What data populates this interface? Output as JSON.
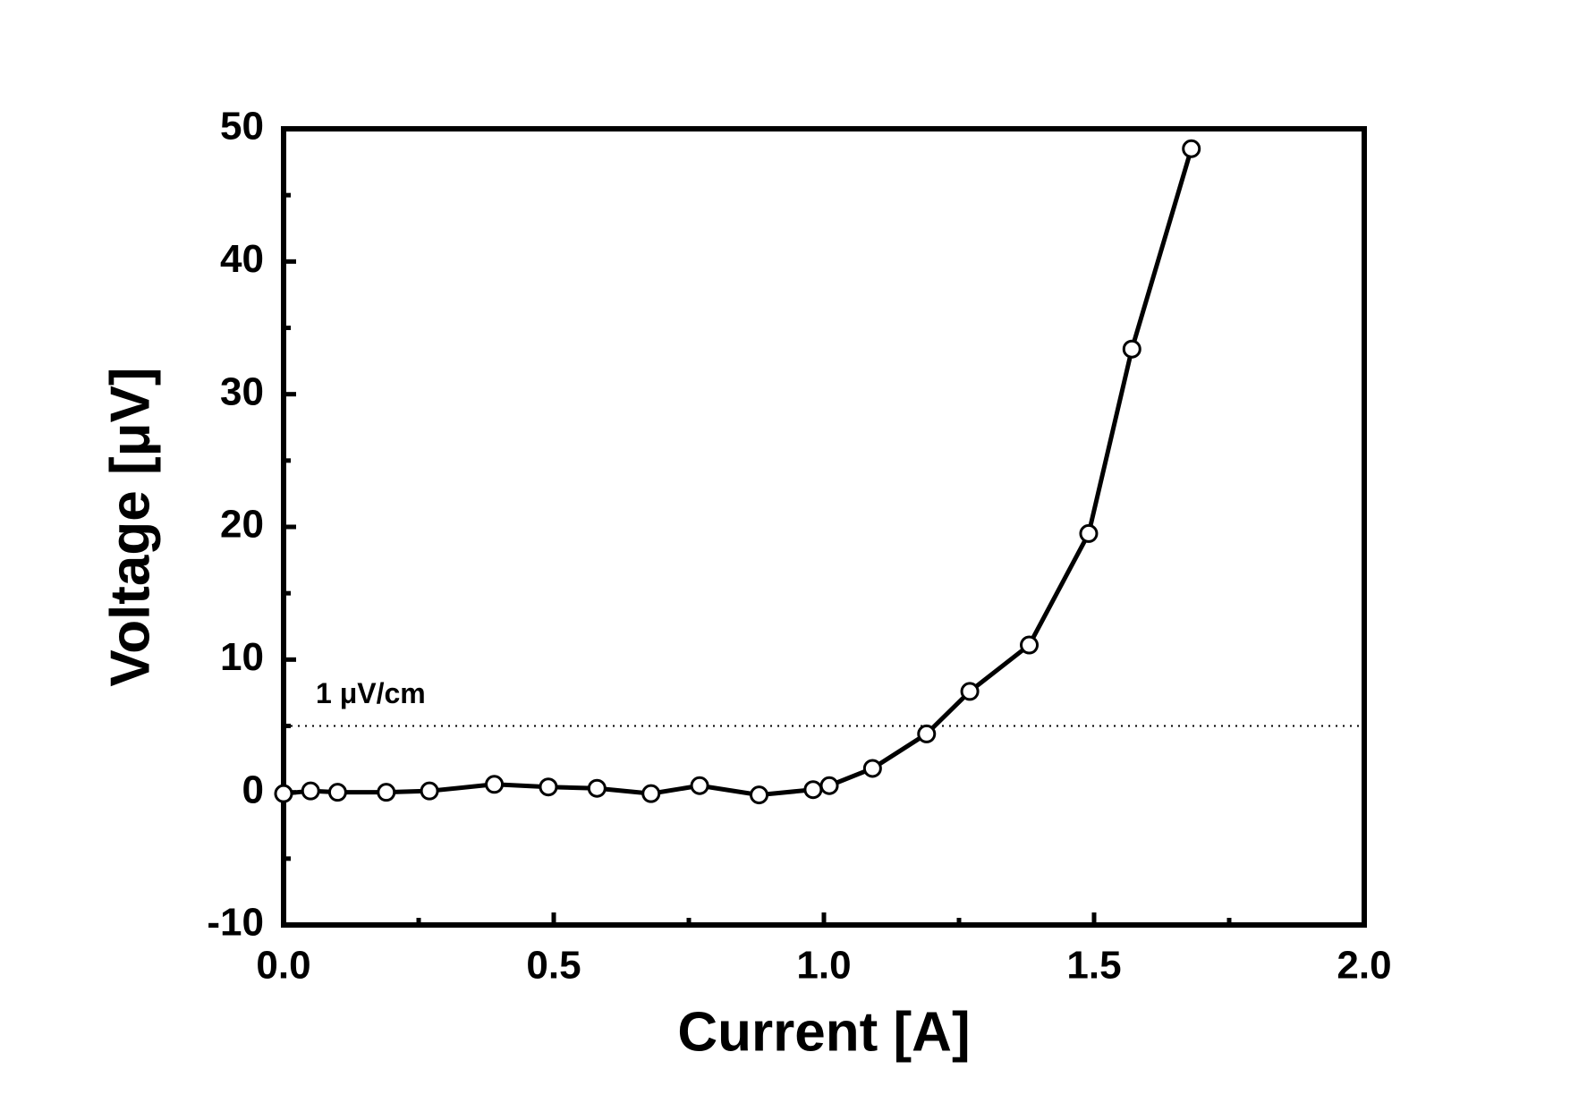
{
  "chart_data": {
    "type": "line",
    "x_label": "Current [A]",
    "y_label": "Voltage [μV]",
    "x": [
      0.0,
      0.05,
      0.1,
      0.19,
      0.27,
      0.39,
      0.49,
      0.58,
      0.68,
      0.77,
      0.88,
      0.98,
      1.01,
      1.09,
      1.19,
      1.27,
      1.38,
      1.49,
      1.57,
      1.68
    ],
    "series": [
      {
        "color": "#000000",
        "values": [
          -0.1,
          0.1,
          0.0,
          0.0,
          0.1,
          0.6,
          0.4,
          0.3,
          -0.1,
          0.5,
          -0.2,
          0.2,
          0.5,
          1.8,
          4.4,
          7.6,
          11.1,
          19.5,
          33.4,
          48.5
        ]
      }
    ],
    "xlim": [
      0,
      2
    ],
    "ylim": [
      -10,
      50
    ],
    "xticks": [
      {
        "value": 0,
        "label": "0.0"
      },
      {
        "value": 0.5,
        "label": "0.5"
      },
      {
        "value": 1,
        "label": "1.0"
      },
      {
        "value": 1.5,
        "label": "1.5"
      },
      {
        "value": 2,
        "label": "2.0"
      }
    ],
    "yticks": [
      -10,
      0,
      10,
      20,
      30,
      40,
      50
    ],
    "x_minor_ticks": [
      0.25,
      0.75,
      1.25,
      1.75
    ],
    "y_minor_ticks": [
      -5,
      5,
      15,
      25,
      35,
      45
    ],
    "reference_line": {
      "value": 5,
      "label": "1 μV/cm"
    },
    "grid": false
  }
}
